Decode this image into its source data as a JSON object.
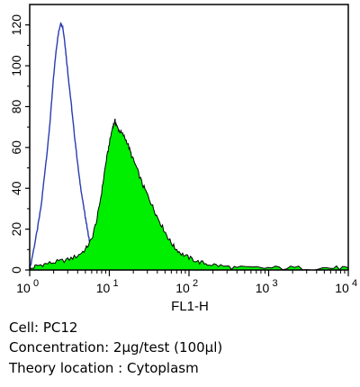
{
  "chart_data": {
    "type": "area",
    "xscale": "log",
    "xlim": [
      1,
      10000
    ],
    "ylim": [
      0,
      130
    ],
    "xlabel": "FL1-H",
    "ylabel": "",
    "x_ticks": [
      {
        "base": "10",
        "exp": "0",
        "value": 1
      },
      {
        "base": "10",
        "exp": "1",
        "value": 10
      },
      {
        "base": "10",
        "exp": "2",
        "value": 100
      },
      {
        "base": "10",
        "exp": "3",
        "value": 1000
      },
      {
        "base": "10",
        "exp": "4",
        "value": 10000
      }
    ],
    "y_ticks": [
      0,
      20,
      40,
      60,
      80,
      100,
      120
    ],
    "grid": false,
    "series": [
      {
        "style": "outline",
        "color": "#2a3bb0",
        "points": [
          [
            1.0,
            0
          ],
          [
            1.12,
            10
          ],
          [
            1.25,
            20
          ],
          [
            1.4,
            32
          ],
          [
            1.55,
            48
          ],
          [
            1.7,
            62
          ],
          [
            1.85,
            78
          ],
          [
            2.0,
            95
          ],
          [
            2.15,
            108
          ],
          [
            2.3,
            116
          ],
          [
            2.45,
            121
          ],
          [
            2.6,
            119
          ],
          [
            2.75,
            112
          ],
          [
            2.9,
            103
          ],
          [
            3.1,
            92
          ],
          [
            3.35,
            80
          ],
          [
            3.6,
            68
          ],
          [
            3.9,
            56
          ],
          [
            4.2,
            45
          ],
          [
            4.5,
            37
          ],
          [
            4.8,
            30
          ],
          [
            5.1,
            24
          ],
          [
            5.4,
            18
          ],
          [
            5.7,
            13
          ],
          [
            6.0,
            9
          ],
          [
            6.4,
            6
          ],
          [
            6.9,
            3
          ],
          [
            7.5,
            1
          ],
          [
            8.3,
            0
          ]
        ]
      },
      {
        "style": "filled",
        "color": "#00ee00",
        "points": [
          [
            1.0,
            0
          ],
          [
            1.2,
            2
          ],
          [
            1.6,
            3
          ],
          [
            2.2,
            4
          ],
          [
            3.0,
            5
          ],
          [
            4.0,
            7
          ],
          [
            5.0,
            10
          ],
          [
            6.0,
            15
          ],
          [
            7.0,
            25
          ],
          [
            8.0,
            38
          ],
          [
            9.0,
            52
          ],
          [
            10.0,
            62
          ],
          [
            11.0,
            70
          ],
          [
            11.8,
            73
          ],
          [
            12.5,
            70
          ],
          [
            13.5,
            68
          ],
          [
            15.0,
            66
          ],
          [
            17.0,
            62
          ],
          [
            19.0,
            56
          ],
          [
            22.0,
            50
          ],
          [
            26.0,
            42
          ],
          [
            30.0,
            37
          ],
          [
            35.0,
            31
          ],
          [
            40.0,
            26
          ],
          [
            48.0,
            20
          ],
          [
            56.0,
            15
          ],
          [
            66.0,
            11
          ],
          [
            80.0,
            8
          ],
          [
            100.0,
            6
          ],
          [
            130.0,
            4
          ],
          [
            170.0,
            3
          ],
          [
            250.0,
            2
          ],
          [
            400.0,
            1
          ],
          [
            800.0,
            1
          ],
          [
            1500.0,
            1
          ],
          [
            3000.0,
            1
          ],
          [
            6000.0,
            1
          ],
          [
            10000.0,
            1
          ]
        ]
      }
    ]
  },
  "captions": {
    "cell": "Cell: PC12",
    "concentration": "Concentration: 2μg/test (100μl)",
    "location": "Theory location : Cytoplasm"
  }
}
